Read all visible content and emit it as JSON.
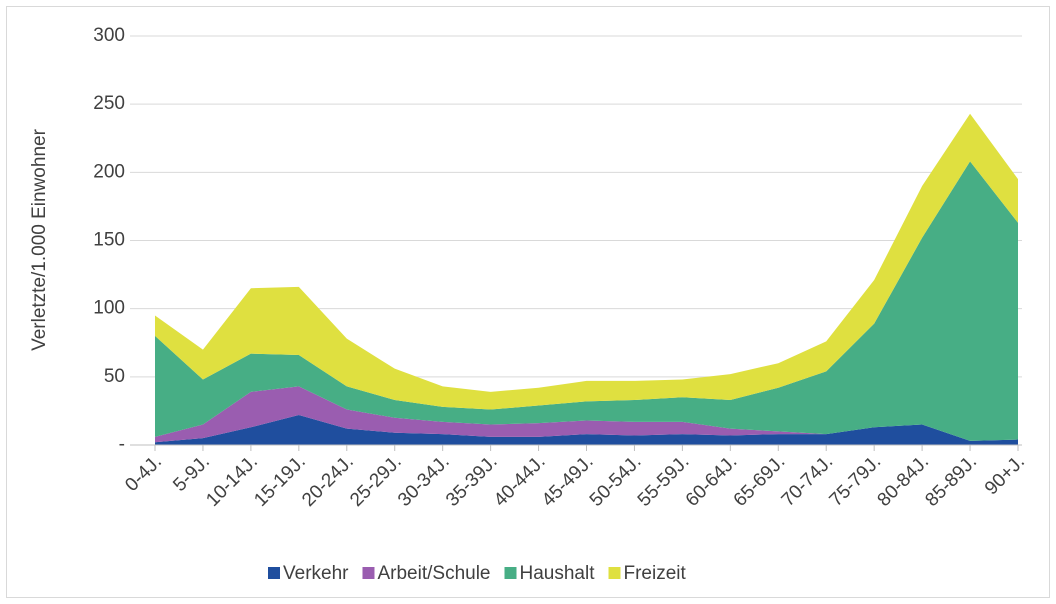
{
  "chart_data": {
    "type": "stacked_area",
    "y_label": "Verletzte/1.000 Einwohner",
    "categories": [
      "0-4J.",
      "5-9J.",
      "10-14J.",
      "15-19J.",
      "20-24J.",
      "25-29J.",
      "30-34J.",
      "35-39J.",
      "40-44J.",
      "45-49J.",
      "50-54J.",
      "55-59J.",
      "60-64J.",
      "65-69J.",
      "70-74J.",
      "75-79J.",
      "80-84J.",
      "85-89J.",
      "90+J."
    ],
    "series": [
      {
        "name": "Verkehr",
        "color": "#1f4e9e",
        "values": [
          2,
          5,
          13,
          22,
          12,
          9,
          8,
          6,
          6,
          8,
          7,
          8,
          7,
          8,
          8,
          13,
          15,
          3,
          4
        ]
      },
      {
        "name": "Arbeit/Schule",
        "color": "#9a5db0",
        "values": [
          4,
          10,
          26,
          21,
          14,
          11,
          9,
          9,
          10,
          10,
          10,
          9,
          5,
          2,
          0,
          0,
          0,
          0,
          0
        ]
      },
      {
        "name": "Haushalt",
        "color": "#47ae85",
        "values": [
          74,
          33,
          28,
          23,
          17,
          13,
          11,
          11,
          13,
          14,
          16,
          18,
          21,
          32,
          46,
          76,
          137,
          205,
          159
        ]
      },
      {
        "name": "Freizeit",
        "color": "#dfe040",
        "values": [
          15,
          22,
          48,
          50,
          35,
          23,
          15,
          13,
          13,
          15,
          14,
          13,
          19,
          18,
          22,
          32,
          38,
          35,
          32
        ]
      }
    ],
    "ylim": [
      0,
      300
    ],
    "yticks": [
      {
        "value": 0,
        "label": "-"
      },
      50,
      100,
      150,
      200,
      250,
      300
    ],
    "grid": true,
    "legend": "bottom"
  }
}
